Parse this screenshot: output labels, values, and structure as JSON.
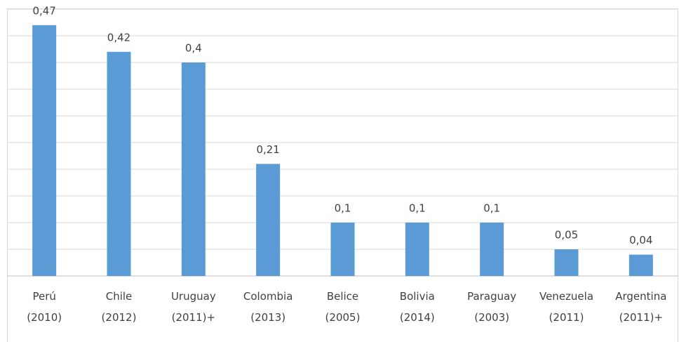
{
  "chart_data": {
    "type": "bar",
    "categories": [
      "Perú (2010)",
      "Chile (2012)",
      "Uruguay (2011)+",
      "Colombia (2013)",
      "Belice (2005)",
      "Bolivia (2014)",
      "Paraguay (2003)",
      "Venezuela (2011)",
      "Argentina (2011)+"
    ],
    "values": [
      0.47,
      0.42,
      0.4,
      0.21,
      0.1,
      0.1,
      0.1,
      0.05,
      0.04
    ],
    "value_labels": [
      "0,47",
      "0,42",
      "0,4",
      "0,21",
      "0,1",
      "0,1",
      "0,1",
      "0,05",
      "0,04"
    ],
    "color": "#5b9bd5",
    "ylim": [
      0,
      0.5
    ],
    "yticks": [
      0,
      0.05,
      0.1,
      0.15,
      0.2,
      0.25,
      0.3,
      0.35,
      0.4,
      0.45,
      0.5
    ],
    "grid": true
  }
}
